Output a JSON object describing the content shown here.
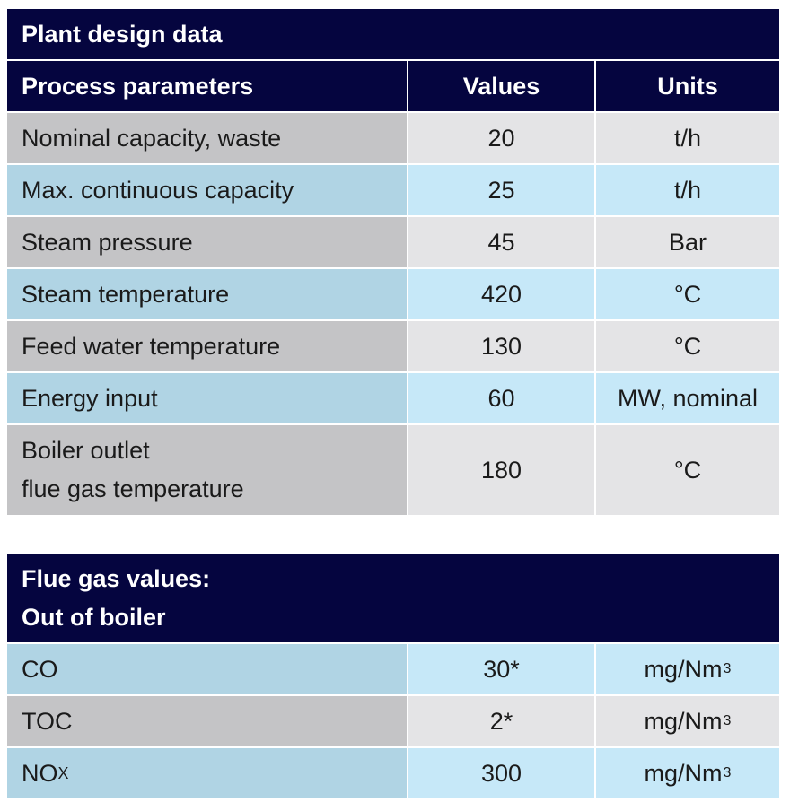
{
  "table1": {
    "title": "Plant design data",
    "headers": [
      "Process parameters",
      "Values",
      "Units"
    ],
    "rows": [
      {
        "parameter": "Nominal capacity, waste",
        "value": "20",
        "unit": "t/h"
      },
      {
        "parameter": "Max. continuous capacity",
        "value": "25",
        "unit": "t/h"
      },
      {
        "parameter": "Steam pressure",
        "value": "45",
        "unit": "Bar"
      },
      {
        "parameter": "Steam temperature",
        "value": "420",
        "unit": "°C"
      },
      {
        "parameter": "Feed water temperature",
        "value": "130",
        "unit": "°C"
      },
      {
        "parameter": "Energy input",
        "value": "60",
        "unit": "MW, nominal"
      },
      {
        "parameter_line1": "Boiler outlet",
        "parameter_line2": "flue gas temperature",
        "value": "180",
        "unit": "°C"
      }
    ]
  },
  "table2": {
    "title_line1": "Flue gas values:",
    "title_line2": "Out of boiler",
    "rows": [
      {
        "parameter": "CO",
        "value": "30*",
        "unit": "mg/Nm",
        "unit_sup": "3"
      },
      {
        "parameter": "TOC",
        "value": "2*",
        "unit": "mg/Nm",
        "unit_sup": "3"
      },
      {
        "parameter": "NO",
        "parameter_sub": "X",
        "value": "300",
        "unit": "mg/Nm",
        "unit_sup": "3"
      }
    ]
  }
}
